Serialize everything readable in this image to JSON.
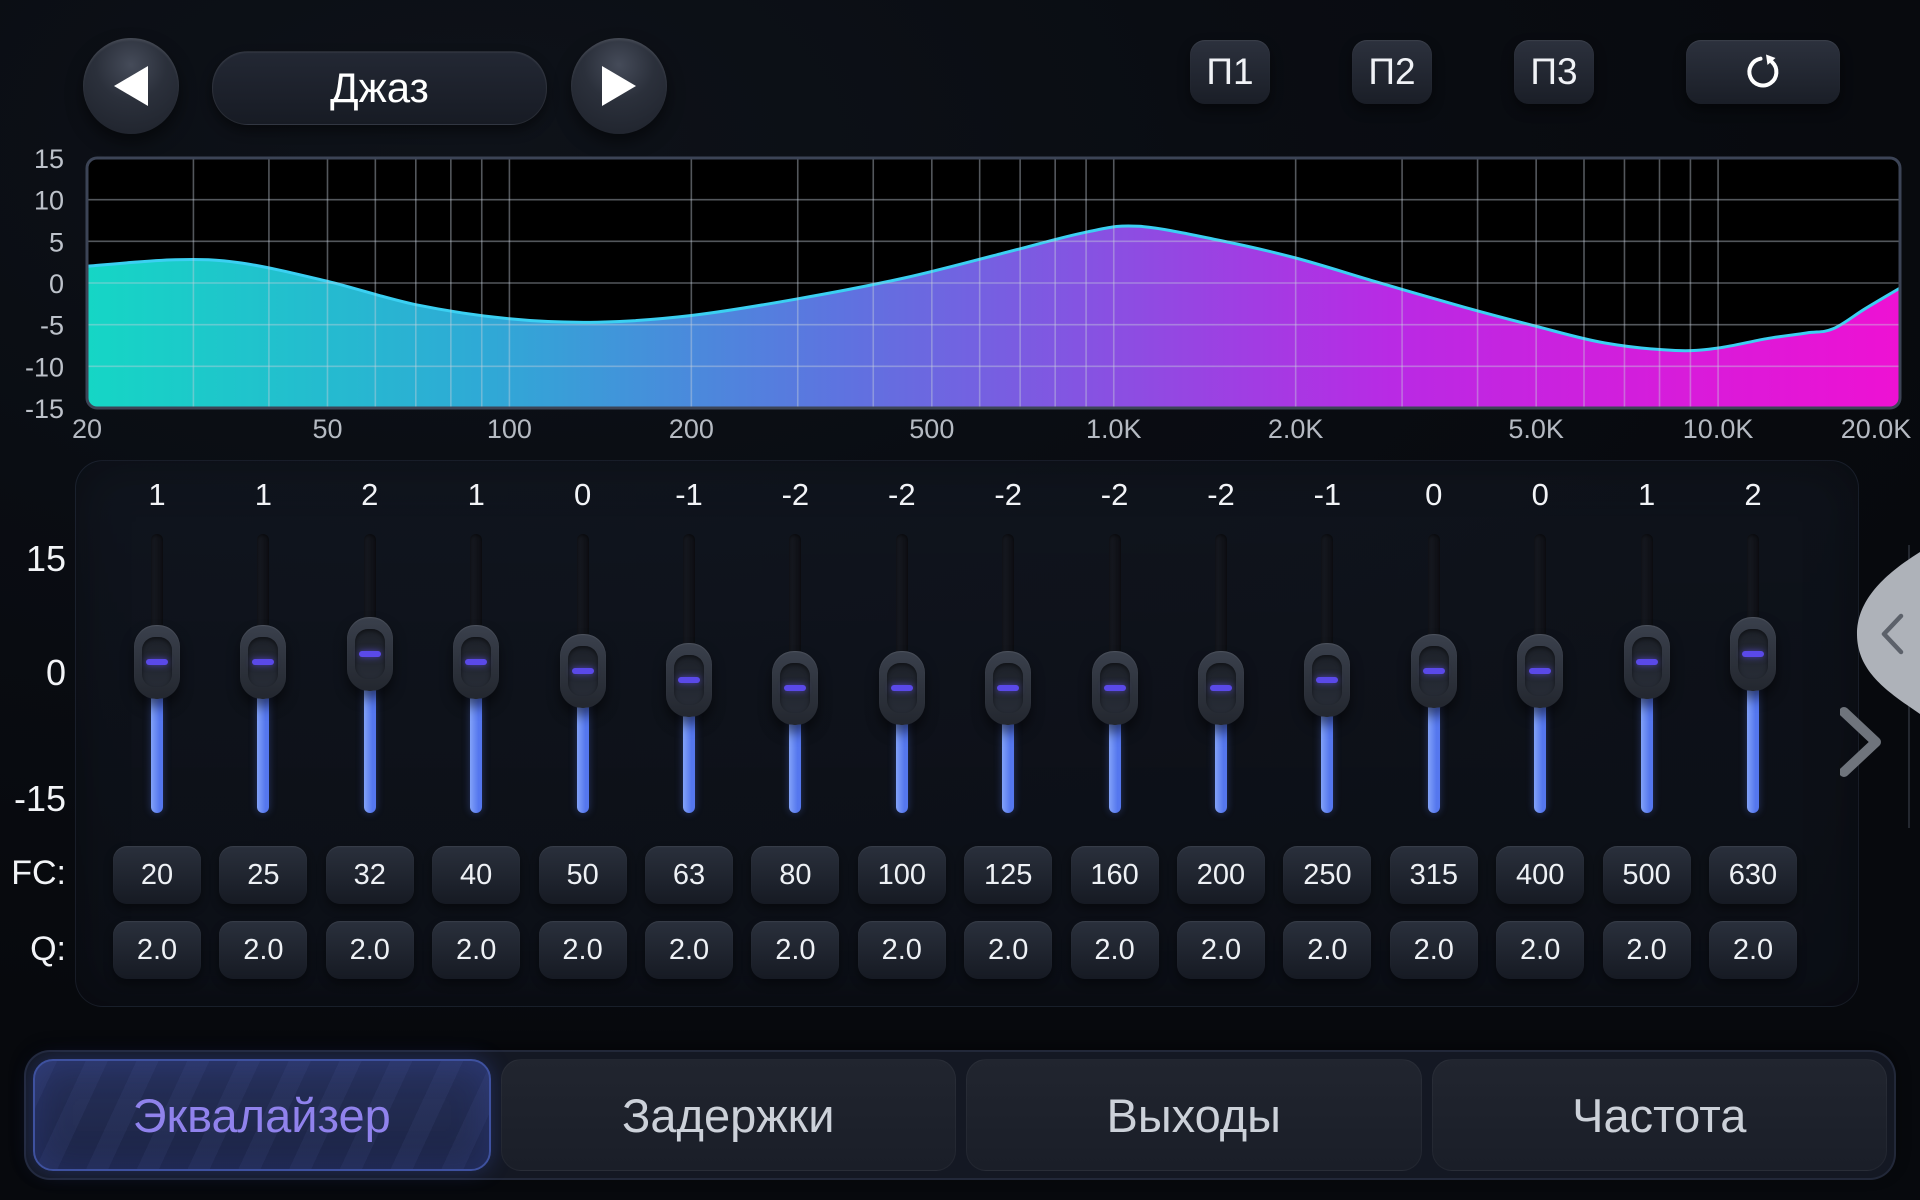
{
  "header": {
    "preset": "Джаз",
    "preset_buttons": [
      "П1",
      "П2",
      "П3"
    ],
    "reset_icon": "reset-circular-arrow"
  },
  "chart_data": {
    "type": "area",
    "title": "Equalizer frequency response",
    "x_scale": "log",
    "xlim_hz": [
      20,
      20000
    ],
    "ylim_db": [
      -15,
      15
    ],
    "grid": true,
    "x_ticks": [
      {
        "label": "20",
        "hz": 20
      },
      {
        "label": "50",
        "hz": 50
      },
      {
        "label": "100",
        "hz": 100
      },
      {
        "label": "200",
        "hz": 200
      },
      {
        "label": "500",
        "hz": 500
      },
      {
        "label": "1.0K",
        "hz": 1000
      },
      {
        "label": "2.0K",
        "hz": 2000
      },
      {
        "label": "5.0K",
        "hz": 5000
      },
      {
        "label": "10.0K",
        "hz": 10000
      },
      {
        "label": "20.0K",
        "hz": 20000
      }
    ],
    "y_ticks": [
      15,
      10,
      5,
      0,
      -5,
      -10,
      -15
    ],
    "points": [
      [
        20,
        2.0
      ],
      [
        28,
        2.8
      ],
      [
        36,
        2.4
      ],
      [
        50,
        0.2
      ],
      [
        70,
        -2.6
      ],
      [
        100,
        -4.3
      ],
      [
        140,
        -4.7
      ],
      [
        200,
        -3.9
      ],
      [
        300,
        -1.9
      ],
      [
        450,
        0.6
      ],
      [
        650,
        3.5
      ],
      [
        900,
        6.1
      ],
      [
        1100,
        6.8
      ],
      [
        1500,
        5.1
      ],
      [
        2000,
        3.0
      ],
      [
        2700,
        0.2
      ],
      [
        3800,
        -2.9
      ],
      [
        5000,
        -5.2
      ],
      [
        6500,
        -7.2
      ],
      [
        8500,
        -8.1
      ],
      [
        10000,
        -7.8
      ],
      [
        12000,
        -6.7
      ],
      [
        14000,
        -6.0
      ],
      [
        15500,
        -5.5
      ],
      [
        17500,
        -3.1
      ],
      [
        20000,
        -0.6
      ]
    ],
    "stroke": "#3bd0f2",
    "fill_gradient": [
      {
        "offset": 0.0,
        "color": "#15d6c5"
      },
      {
        "offset": 0.22,
        "color": "#2fa9d6"
      },
      {
        "offset": 0.42,
        "color": "#5f72e0"
      },
      {
        "offset": 0.58,
        "color": "#8e4ce2"
      },
      {
        "offset": 0.72,
        "color": "#b92ae4"
      },
      {
        "offset": 1.0,
        "color": "#ee11d3"
      }
    ]
  },
  "eq": {
    "scale_labels": [
      "15",
      "0",
      "-15"
    ],
    "fc_label": "FC:",
    "q_label": "Q:",
    "bands": [
      {
        "gain": 1,
        "fc": "20",
        "q": "2.0"
      },
      {
        "gain": 1,
        "fc": "25",
        "q": "2.0"
      },
      {
        "gain": 2,
        "fc": "32",
        "q": "2.0"
      },
      {
        "gain": 1,
        "fc": "40",
        "q": "2.0"
      },
      {
        "gain": 0,
        "fc": "50",
        "q": "2.0"
      },
      {
        "gain": -1,
        "fc": "63",
        "q": "2.0"
      },
      {
        "gain": -2,
        "fc": "80",
        "q": "2.0"
      },
      {
        "gain": -2,
        "fc": "100",
        "q": "2.0"
      },
      {
        "gain": -2,
        "fc": "125",
        "q": "2.0"
      },
      {
        "gain": -2,
        "fc": "160",
        "q": "2.0"
      },
      {
        "gain": -2,
        "fc": "200",
        "q": "2.0"
      },
      {
        "gain": -1,
        "fc": "250",
        "q": "2.0"
      },
      {
        "gain": 0,
        "fc": "315",
        "q": "2.0"
      },
      {
        "gain": 0,
        "fc": "400",
        "q": "2.0"
      },
      {
        "gain": 1,
        "fc": "500",
        "q": "2.0"
      },
      {
        "gain": 2,
        "fc": "630",
        "q": "2.0"
      }
    ],
    "accent_blue": "#5b82f0",
    "handle_dash_color": "#5a49e8"
  },
  "side_panel": {
    "collapse_chevron": "<",
    "expand_chevron": ">"
  },
  "tabs": [
    {
      "label": "Эквалайзер",
      "active": true
    },
    {
      "label": "Задержки",
      "active": false
    },
    {
      "label": "Выходы",
      "active": false
    },
    {
      "label": "Частота",
      "active": false
    }
  ],
  "colors": {
    "active_tab_text": "#9082ec",
    "curve_stroke": "#3bd0f2",
    "chart_bg": "#000000"
  }
}
